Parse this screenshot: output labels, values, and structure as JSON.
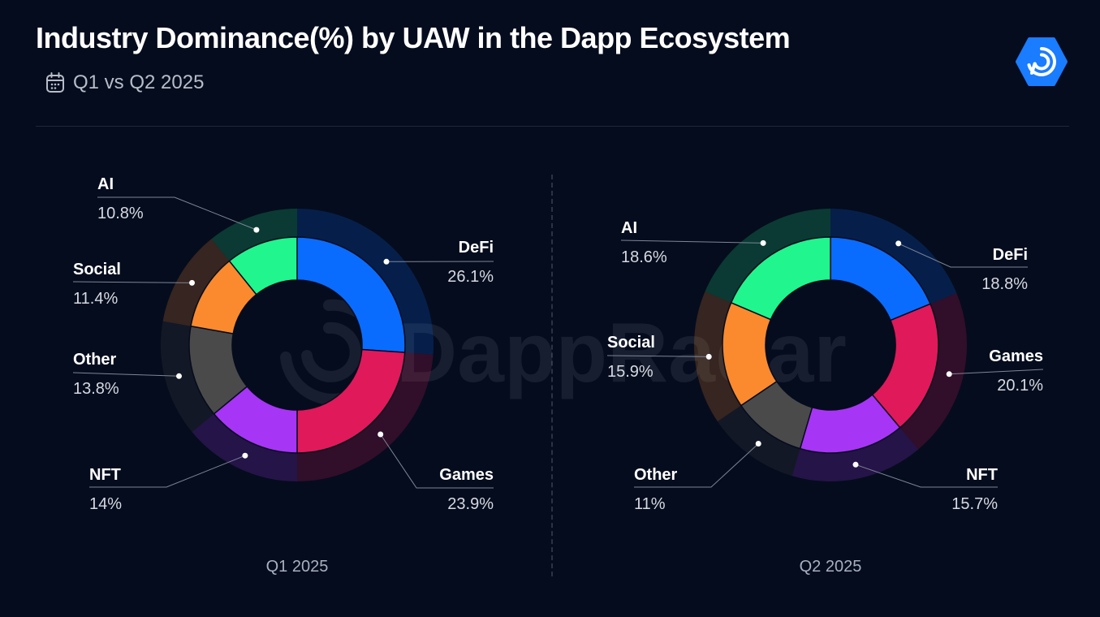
{
  "header": {
    "title": "Industry Dominance(%) by UAW in the Dapp Ecosystem",
    "subtitle": "Q1 vs Q2 2025",
    "watermark": "DappRadar"
  },
  "icons": {
    "subtitle_icon": "calendar-icon",
    "logo": "dappradar-logo-icon"
  },
  "colors": {
    "background": "#050c1d",
    "DeFi": "#0a6cff",
    "Games": "#e0195a",
    "NFT": "#a735f5",
    "Other": "#4a4a4a",
    "Social": "#fb8a2e",
    "AI": "#20f58e",
    "logo": "#1a7cff"
  },
  "chart_data": [
    {
      "type": "pie",
      "title": "Q1 2025",
      "categories": [
        "DeFi",
        "Games",
        "NFT",
        "Other",
        "Social",
        "AI"
      ],
      "values": [
        26.1,
        23.9,
        14,
        13.8,
        11.4,
        10.8
      ],
      "value_labels": [
        "26.1%",
        "23.9%",
        "14%",
        "13.8%",
        "11.4%",
        "10.8%"
      ]
    },
    {
      "type": "pie",
      "title": "Q2 2025",
      "categories": [
        "DeFi",
        "Games",
        "NFT",
        "Other",
        "Social",
        "AI"
      ],
      "values": [
        18.8,
        20.1,
        15.7,
        11,
        15.9,
        18.6
      ],
      "value_labels": [
        "18.8%",
        "20.1%",
        "15.7%",
        "11%",
        "15.9%",
        "18.6%"
      ]
    }
  ]
}
